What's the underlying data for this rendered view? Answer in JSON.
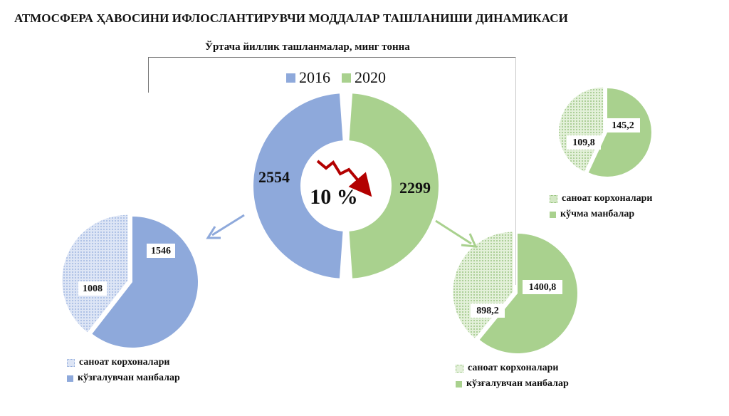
{
  "title": "АТМОСФЕРА ҲАВОСИНИ ИФЛОСЛАНТИРУВЧИ МОДДАЛАР ТАШЛАНИШИ ДИНАМИКАСИ",
  "subtitle": "Ўртача йиллик ташланмалар, минг тонна",
  "colors": {
    "blue": "#8ea9db",
    "blue_light": "#c9d5ef",
    "green": "#a9d18e",
    "green_light": "#d3e8c4",
    "arrow_red": "#b30000",
    "arrow_blue": "#8ea9db",
    "arrow_green": "#a9d18e"
  },
  "change_label": "10 %",
  "chart_data": [
    {
      "type": "pie",
      "variant": "donut",
      "categories": [
        "2016",
        "2020"
      ],
      "values": [
        2554,
        2299
      ],
      "value_labels": [
        "2554",
        "2299"
      ],
      "legend": [
        "2016",
        "2020"
      ]
    },
    {
      "type": "pie",
      "categories": [
        "саноат корхоналари",
        "кўчма манбалар"
      ],
      "values": [
        109.8,
        145.2
      ],
      "value_labels": [
        "109,8",
        "145,2"
      ],
      "legend": [
        "саноат корхоналари",
        "кўчма манбалар"
      ]
    },
    {
      "type": "pie",
      "categories": [
        "саноат корхоналари",
        "кўзғалувчан манбалар"
      ],
      "values": [
        1008,
        1546
      ],
      "value_labels": [
        "1008",
        "1546"
      ],
      "legend": [
        "саноат корхоналари",
        "кўзғалувчан манбалар"
      ]
    },
    {
      "type": "pie",
      "categories": [
        "саноат корхоналари",
        "кўзғалувчан манбалар"
      ],
      "values": [
        898.2,
        1400.8
      ],
      "value_labels": [
        "898,2",
        "1400,8"
      ],
      "legend": [
        "саноат корхоналари",
        "кўзғалувчан манбалар"
      ]
    }
  ]
}
